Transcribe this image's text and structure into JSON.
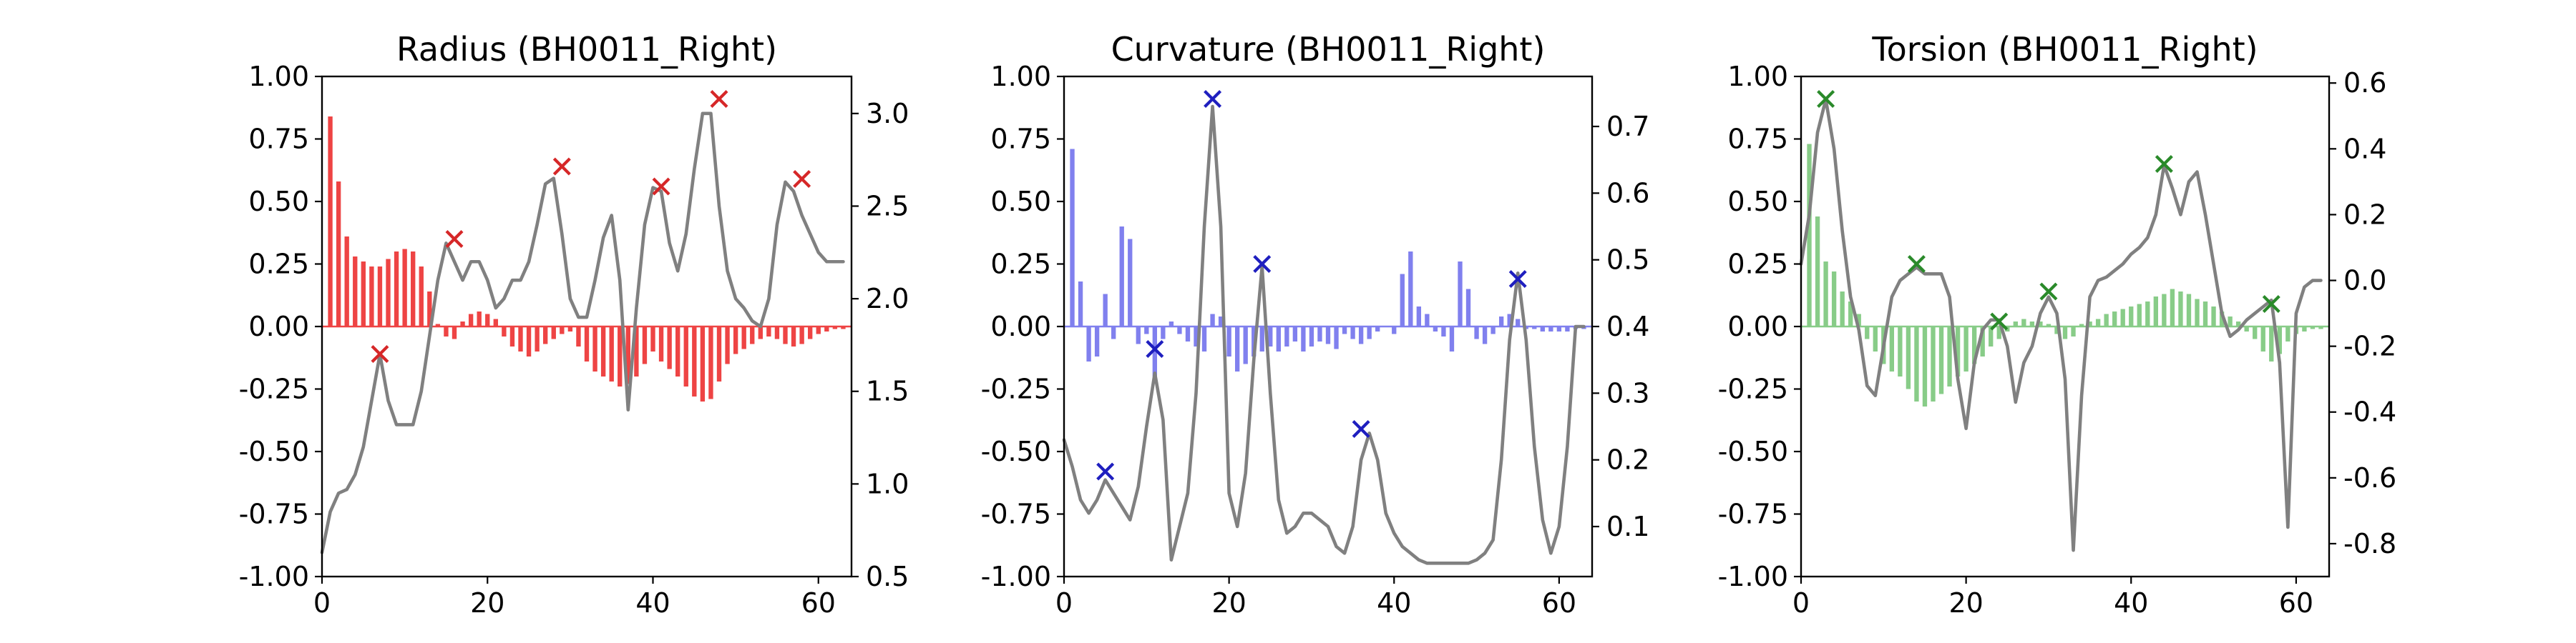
{
  "chart_data": [
    {
      "type": "bar",
      "title": "Radius (BH0011_Right)",
      "color": "#ee4444",
      "marker_color": "#d62728",
      "xlim": [
        0,
        64
      ],
      "xticks": [
        0,
        20,
        40,
        60
      ],
      "ylim": [
        -1.0,
        1.0
      ],
      "yticks": [
        "-1.00",
        "-0.75",
        "-0.50",
        "-0.25",
        "0.00",
        "0.25",
        "0.50",
        "0.75",
        "1.00"
      ],
      "y2lim": [
        0.5,
        3.2
      ],
      "y2ticks": [
        "0.5",
        "1.0",
        "1.5",
        "2.0",
        "2.5",
        "3.0"
      ],
      "bars": {
        "x": [
          1,
          2,
          3,
          4,
          5,
          6,
          7,
          8,
          9,
          10,
          11,
          12,
          13,
          14,
          15,
          16,
          17,
          18,
          19,
          20,
          21,
          22,
          23,
          24,
          25,
          26,
          27,
          28,
          29,
          30,
          31,
          32,
          33,
          34,
          35,
          36,
          37,
          38,
          39,
          40,
          41,
          42,
          43,
          44,
          45,
          46,
          47,
          48,
          49,
          50,
          51,
          52,
          53,
          54,
          55,
          56,
          57,
          58,
          59,
          60,
          61,
          62,
          63
        ],
        "values": [
          0.84,
          0.58,
          0.36,
          0.28,
          0.26,
          0.24,
          0.24,
          0.27,
          0.3,
          0.31,
          0.3,
          0.24,
          0.14,
          0.01,
          -0.04,
          -0.05,
          0.02,
          0.05,
          0.06,
          0.05,
          0.03,
          -0.04,
          -0.08,
          -0.1,
          -0.12,
          -0.1,
          -0.07,
          -0.05,
          -0.03,
          -0.02,
          -0.08,
          -0.14,
          -0.18,
          -0.2,
          -0.22,
          -0.24,
          -0.23,
          -0.2,
          -0.15,
          -0.1,
          -0.14,
          -0.17,
          -0.2,
          -0.24,
          -0.28,
          -0.3,
          -0.29,
          -0.22,
          -0.15,
          -0.11,
          -0.09,
          -0.07,
          -0.05,
          -0.04,
          -0.05,
          -0.07,
          -0.08,
          -0.07,
          -0.05,
          -0.03,
          -0.02,
          -0.01,
          -0.01
        ]
      },
      "line": {
        "x": [
          0,
          1,
          2,
          3,
          4,
          5,
          6,
          7,
          8,
          9,
          10,
          11,
          12,
          13,
          14,
          15,
          16,
          17,
          18,
          19,
          20,
          21,
          22,
          23,
          24,
          25,
          26,
          27,
          28,
          29,
          30,
          31,
          32,
          33,
          34,
          35,
          36,
          37,
          38,
          39,
          40,
          41,
          42,
          43,
          44,
          45,
          46,
          47,
          48,
          49,
          50,
          51,
          52,
          53,
          54,
          55,
          56,
          57,
          58,
          59,
          60,
          61,
          62,
          63
        ],
        "y": [
          0.63,
          0.85,
          0.95,
          0.97,
          1.05,
          1.2,
          1.45,
          1.7,
          1.45,
          1.32,
          1.32,
          1.32,
          1.5,
          1.8,
          2.1,
          2.3,
          2.2,
          2.1,
          2.2,
          2.2,
          2.1,
          1.95,
          2.0,
          2.1,
          2.1,
          2.2,
          2.4,
          2.62,
          2.65,
          2.35,
          2.0,
          1.9,
          1.9,
          2.1,
          2.33,
          2.45,
          2.1,
          1.4,
          1.95,
          2.4,
          2.6,
          2.58,
          2.3,
          2.15,
          2.35,
          2.7,
          3.0,
          3.0,
          2.5,
          2.15,
          2.0,
          1.95,
          1.88,
          1.85,
          2.0,
          2.4,
          2.63,
          2.58,
          2.45,
          2.35,
          2.25,
          2.2,
          2.2,
          2.2
        ]
      },
      "peaks": {
        "x": [
          7,
          16,
          29,
          41,
          48,
          58
        ],
        "y": [
          -0.11,
          0.35,
          0.64,
          0.56,
          0.91,
          0.59
        ]
      }
    },
    {
      "type": "bar",
      "title": "Curvature (BH0011_Right)",
      "color": "#8080ee",
      "marker_color": "#1f1fbf",
      "xlim": [
        0,
        64
      ],
      "xticks": [
        0,
        20,
        40,
        60
      ],
      "ylim": [
        -1.0,
        1.0
      ],
      "yticks": [
        "-1.00",
        "-0.75",
        "-0.50",
        "-0.25",
        "0.00",
        "0.25",
        "0.50",
        "0.75",
        "1.00"
      ],
      "y2lim": [
        0.025,
        0.775
      ],
      "y2ticks": [
        "0.1",
        "0.2",
        "0.3",
        "0.4",
        "0.5",
        "0.6",
        "0.7"
      ],
      "bars": {
        "x": [
          1,
          2,
          3,
          4,
          5,
          6,
          7,
          8,
          9,
          10,
          11,
          12,
          13,
          14,
          15,
          16,
          17,
          18,
          19,
          20,
          21,
          22,
          23,
          24,
          25,
          26,
          27,
          28,
          29,
          30,
          31,
          32,
          33,
          34,
          35,
          36,
          37,
          38,
          39,
          40,
          41,
          42,
          43,
          44,
          45,
          46,
          47,
          48,
          49,
          50,
          51,
          52,
          53,
          54,
          55,
          56,
          57,
          58,
          59,
          60,
          61,
          62,
          63
        ],
        "values": [
          0.71,
          0.18,
          -0.14,
          -0.12,
          0.13,
          -0.05,
          0.4,
          0.35,
          -0.07,
          -0.03,
          -0.2,
          -0.05,
          0.02,
          -0.03,
          -0.06,
          -0.08,
          -0.1,
          0.05,
          0.04,
          -0.12,
          -0.18,
          -0.15,
          -0.12,
          -0.1,
          -0.08,
          -0.1,
          -0.08,
          -0.06,
          -0.1,
          -0.08,
          -0.06,
          -0.07,
          -0.09,
          -0.03,
          -0.05,
          -0.07,
          -0.05,
          -0.02,
          0.0,
          -0.03,
          0.21,
          0.3,
          0.08,
          0.05,
          -0.02,
          -0.04,
          -0.1,
          0.26,
          0.15,
          -0.05,
          -0.07,
          -0.03,
          0.04,
          0.05,
          0.03,
          -0.01,
          -0.01,
          -0.02,
          -0.02,
          -0.02,
          -0.02,
          -0.01,
          -0.01
        ]
      },
      "line": {
        "x": [
          0,
          1,
          2,
          3,
          4,
          5,
          6,
          7,
          8,
          9,
          10,
          11,
          12,
          13,
          14,
          15,
          16,
          17,
          18,
          19,
          20,
          21,
          22,
          23,
          24,
          25,
          26,
          27,
          28,
          29,
          30,
          31,
          32,
          33,
          34,
          35,
          36,
          37,
          38,
          39,
          40,
          41,
          42,
          43,
          44,
          45,
          46,
          47,
          48,
          49,
          50,
          51,
          52,
          53,
          54,
          55,
          56,
          57,
          58,
          59,
          60,
          61,
          62,
          63
        ],
        "y": [
          0.23,
          0.19,
          0.14,
          0.12,
          0.14,
          0.17,
          0.15,
          0.13,
          0.11,
          0.16,
          0.25,
          0.33,
          0.26,
          0.05,
          0.1,
          0.15,
          0.3,
          0.55,
          0.73,
          0.55,
          0.15,
          0.1,
          0.18,
          0.35,
          0.49,
          0.3,
          0.14,
          0.09,
          0.1,
          0.12,
          0.12,
          0.11,
          0.1,
          0.07,
          0.06,
          0.1,
          0.2,
          0.24,
          0.2,
          0.12,
          0.09,
          0.07,
          0.06,
          0.05,
          0.045,
          0.045,
          0.045,
          0.045,
          0.045,
          0.045,
          0.05,
          0.06,
          0.08,
          0.2,
          0.38,
          0.48,
          0.38,
          0.22,
          0.11,
          0.06,
          0.1,
          0.22,
          0.4,
          0.4
        ]
      },
      "peaks": {
        "x": [
          5,
          11,
          18,
          24,
          36,
          55
        ],
        "y": [
          -0.58,
          -0.09,
          0.91,
          0.25,
          -0.41,
          0.19
        ]
      }
    },
    {
      "type": "bar",
      "title": "Torsion (BH0011_Right)",
      "color": "#88cc88",
      "marker_color": "#2a8a2a",
      "xlim": [
        0,
        64
      ],
      "xticks": [
        0,
        20,
        40,
        60
      ],
      "ylim": [
        -1.0,
        1.0
      ],
      "yticks": [
        "-1.00",
        "-0.75",
        "-0.50",
        "-0.25",
        "0.00",
        "0.25",
        "0.50",
        "0.75",
        "1.00"
      ],
      "y2lim": [
        -0.9,
        0.62
      ],
      "y2ticks": [
        "-0.8",
        "-0.6",
        "-0.4",
        "-0.2",
        "0.0",
        "0.2",
        "0.4",
        "0.6"
      ],
      "bars": {
        "x": [
          1,
          2,
          3,
          4,
          5,
          6,
          7,
          8,
          9,
          10,
          11,
          12,
          13,
          14,
          15,
          16,
          17,
          18,
          19,
          20,
          21,
          22,
          23,
          24,
          25,
          26,
          27,
          28,
          29,
          30,
          31,
          32,
          33,
          34,
          35,
          36,
          37,
          38,
          39,
          40,
          41,
          42,
          43,
          44,
          45,
          46,
          47,
          48,
          49,
          50,
          51,
          52,
          53,
          54,
          55,
          56,
          57,
          58,
          59,
          60,
          61,
          62,
          63
        ],
        "values": [
          0.73,
          0.44,
          0.26,
          0.22,
          0.14,
          0.1,
          0.05,
          -0.05,
          -0.1,
          -0.15,
          -0.18,
          -0.2,
          -0.25,
          -0.3,
          -0.32,
          -0.3,
          -0.27,
          -0.24,
          -0.2,
          -0.18,
          -0.15,
          -0.12,
          -0.08,
          -0.05,
          -0.02,
          0.02,
          0.03,
          0.02,
          0.02,
          0.01,
          -0.03,
          -0.05,
          -0.04,
          0.01,
          0.02,
          0.03,
          0.05,
          0.06,
          0.07,
          0.08,
          0.09,
          0.1,
          0.12,
          0.13,
          0.15,
          0.14,
          0.13,
          0.11,
          0.1,
          0.08,
          0.06,
          0.04,
          0.02,
          -0.02,
          -0.05,
          -0.1,
          -0.14,
          -0.11,
          -0.06,
          -0.03,
          -0.02,
          -0.01,
          -0.01
        ]
      },
      "line": {
        "x": [
          0,
          1,
          2,
          3,
          4,
          5,
          6,
          7,
          8,
          9,
          10,
          11,
          12,
          13,
          14,
          15,
          16,
          17,
          18,
          19,
          20,
          21,
          22,
          23,
          24,
          25,
          26,
          27,
          28,
          29,
          30,
          31,
          32,
          33,
          34,
          35,
          36,
          37,
          38,
          39,
          40,
          41,
          42,
          43,
          44,
          45,
          46,
          47,
          48,
          49,
          50,
          51,
          52,
          53,
          54,
          55,
          56,
          57,
          58,
          59,
          60,
          61,
          62,
          63
        ],
        "y": [
          0.05,
          0.2,
          0.45,
          0.55,
          0.4,
          0.15,
          -0.05,
          -0.15,
          -0.32,
          -0.35,
          -0.2,
          -0.05,
          0.0,
          0.02,
          0.04,
          0.02,
          0.02,
          0.02,
          -0.05,
          -0.3,
          -0.45,
          -0.25,
          -0.15,
          -0.12,
          -0.12,
          -0.2,
          -0.37,
          -0.25,
          -0.2,
          -0.1,
          -0.05,
          -0.1,
          -0.3,
          -0.82,
          -0.35,
          -0.05,
          0.0,
          0.01,
          0.03,
          0.05,
          0.08,
          0.1,
          0.13,
          0.2,
          0.35,
          0.28,
          0.2,
          0.3,
          0.33,
          0.2,
          0.05,
          -0.1,
          -0.17,
          -0.15,
          -0.12,
          -0.1,
          -0.08,
          -0.06,
          -0.25,
          -0.75,
          -0.1,
          -0.02,
          0.0,
          0.0
        ]
      },
      "peaks": {
        "x": [
          3,
          14,
          24,
          30,
          44,
          57
        ],
        "y": [
          0.91,
          0.25,
          0.02,
          0.14,
          0.65,
          0.09
        ]
      }
    }
  ]
}
